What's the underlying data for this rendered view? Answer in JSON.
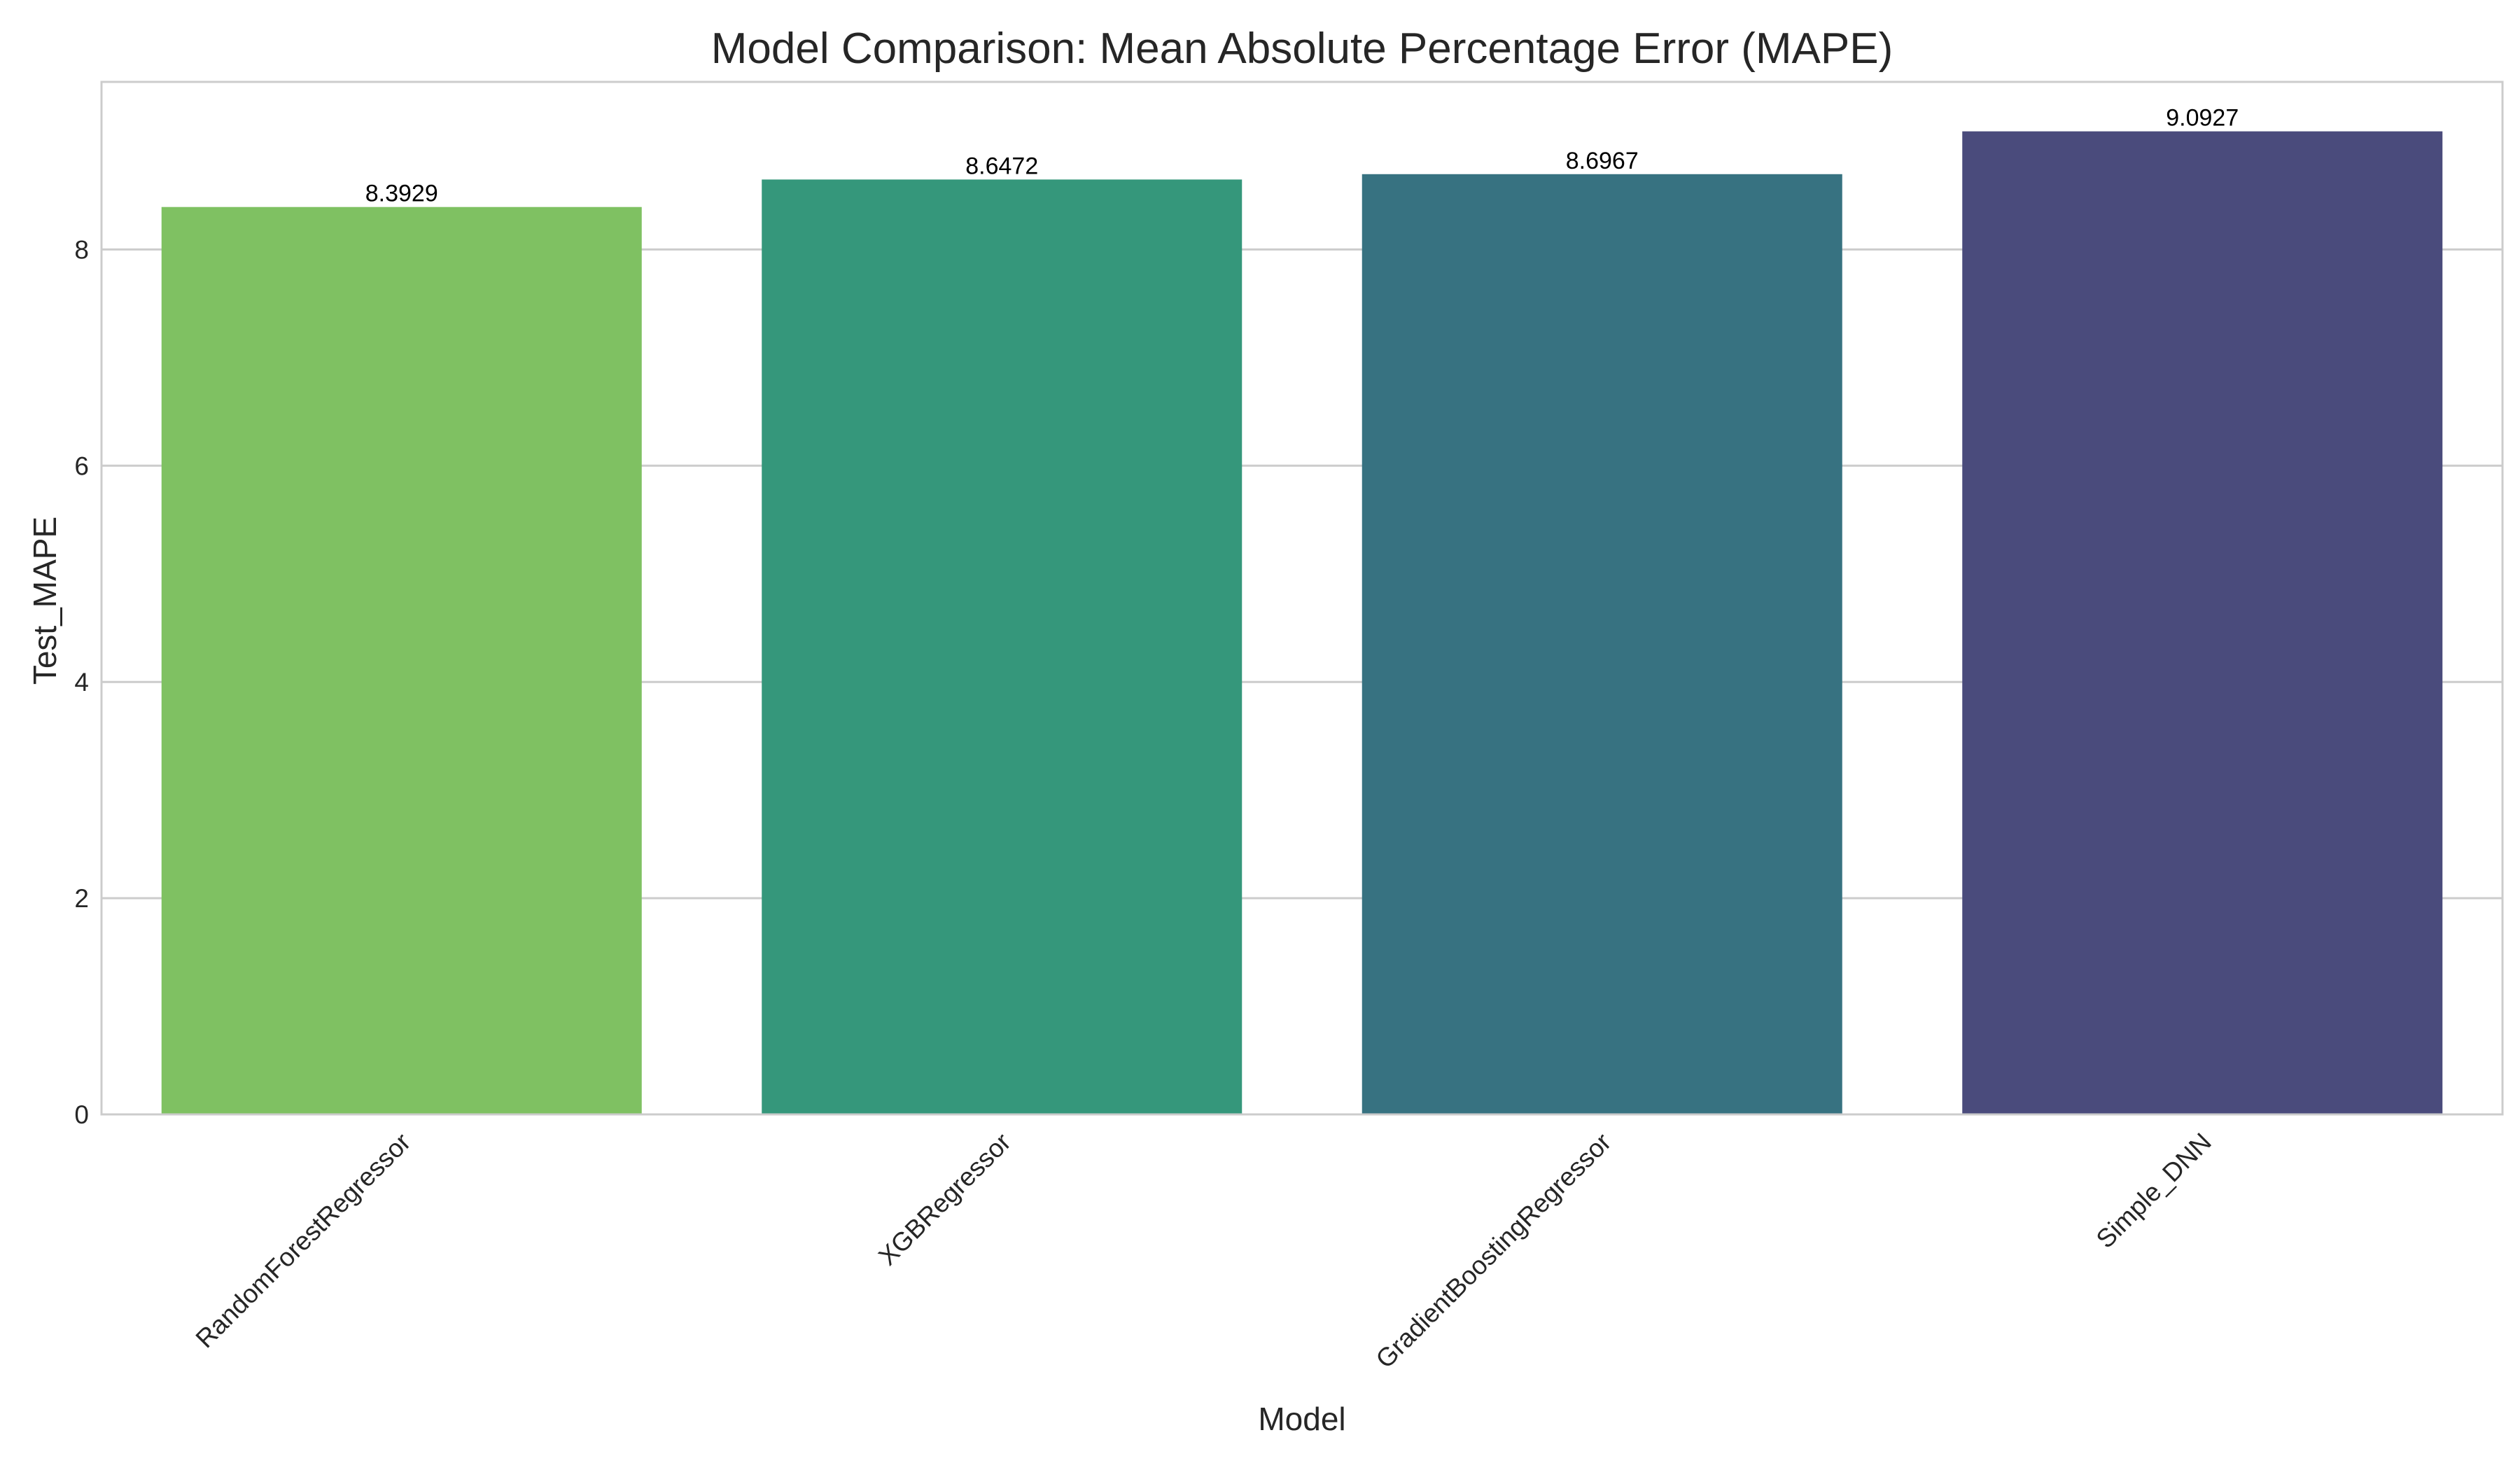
{
  "chart_data": {
    "type": "bar",
    "title": "Model Comparison: Mean Absolute Percentage Error (MAPE)",
    "xlabel": "Model",
    "ylabel": "Test_MAPE",
    "categories": [
      "RandomForestRegressor",
      "XGBRegressor",
      "GradientBoostingRegressor",
      "Simple_DNN"
    ],
    "values": [
      8.3929,
      8.6472,
      8.6967,
      9.0927
    ],
    "data_labels": [
      "8.3929",
      "8.6472",
      "8.6967",
      "9.0927"
    ],
    "colors": [
      "#7fc162",
      "#35977b",
      "#377281",
      "#4a4b7c"
    ],
    "ylim": [
      0,
      9.55
    ],
    "yticks": [
      0,
      2,
      4,
      6,
      8
    ],
    "ytick_labels": [
      "0",
      "2",
      "4",
      "6",
      "8"
    ],
    "grid": true,
    "grid_color": "#cccccc",
    "frame_color": "#cccccc",
    "xtick_rotation": 45
  }
}
